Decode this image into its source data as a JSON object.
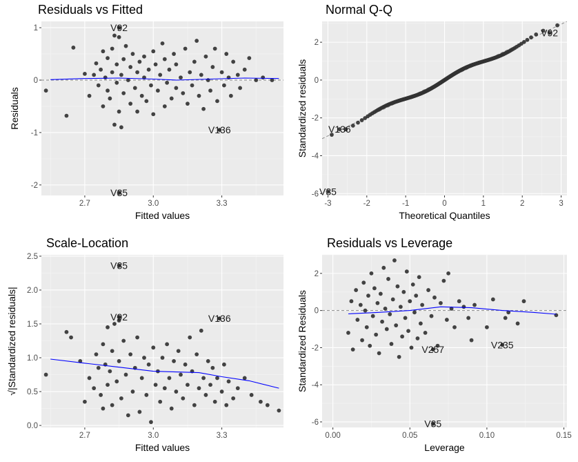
{
  "chart_data": [
    {
      "type": "scatter",
      "title": "Residuals vs Fitted",
      "xlabel": "Fitted values",
      "ylabel": "Residuals",
      "xlim": [
        2.51,
        3.57
      ],
      "ylim": [
        -2.2,
        1.12
      ],
      "xticks": [
        2.7,
        3.0,
        3.3
      ],
      "xtick_labels": [
        "2.7",
        "3.0",
        "3.3"
      ],
      "yticks": [
        -2,
        -1,
        0,
        1
      ],
      "ytick_labels": [
        "-2",
        "-1",
        "0",
        "1"
      ],
      "reference_line": {
        "y": 0,
        "style": "dashed",
        "color": "#888888"
      },
      "smooth": {
        "color": "#0000ff",
        "points": [
          [
            2.55,
            0.01
          ],
          [
            2.7,
            0.03
          ],
          [
            2.85,
            0.04
          ],
          [
            3.0,
            0.02
          ],
          [
            3.1,
            0.0
          ],
          [
            3.25,
            0.02
          ],
          [
            3.4,
            0.04
          ],
          [
            3.55,
            0.03
          ]
        ]
      },
      "points": [
        [
          2.53,
          -0.2
        ],
        [
          2.62,
          -0.68
        ],
        [
          2.65,
          0.62
        ],
        [
          2.7,
          0.12
        ],
        [
          2.72,
          -0.3
        ],
        [
          2.74,
          0.1
        ],
        [
          2.75,
          0.32
        ],
        [
          2.76,
          -0.1
        ],
        [
          2.77,
          0.2
        ],
        [
          2.78,
          0.55
        ],
        [
          2.78,
          -0.5
        ],
        [
          2.79,
          0.05
        ],
        [
          2.8,
          0.42
        ],
        [
          2.8,
          -0.2
        ],
        [
          2.81,
          -0.35
        ],
        [
          2.82,
          0.6
        ],
        [
          2.82,
          0.15
        ],
        [
          2.83,
          -0.85
        ],
        [
          2.83,
          0.85
        ],
        [
          2.84,
          -0.05
        ],
        [
          2.84,
          0.3
        ],
        [
          2.85,
          0.82
        ],
        [
          2.85,
          -0.6
        ],
        [
          2.86,
          -0.9
        ],
        [
          2.86,
          0.1
        ],
        [
          2.87,
          0.4
        ],
        [
          2.87,
          -0.25
        ],
        [
          2.88,
          0.65
        ],
        [
          2.89,
          0.0
        ],
        [
          2.9,
          -0.45
        ],
        [
          2.9,
          0.25
        ],
        [
          2.91,
          0.5
        ],
        [
          2.92,
          -0.15
        ],
        [
          2.93,
          0.15
        ],
        [
          2.93,
          -0.6
        ],
        [
          2.94,
          0.35
        ],
        [
          2.95,
          -0.3
        ],
        [
          2.96,
          0.05
        ],
        [
          2.96,
          0.45
        ],
        [
          2.97,
          -0.4
        ],
        [
          2.98,
          0.2
        ],
        [
          2.99,
          -0.1
        ],
        [
          3.0,
          0.55
        ],
        [
          3.0,
          -0.65
        ],
        [
          3.01,
          0.3
        ],
        [
          3.02,
          -0.2
        ],
        [
          3.03,
          0.1
        ],
        [
          3.04,
          0.7
        ],
        [
          3.05,
          -0.5
        ],
        [
          3.05,
          0.4
        ],
        [
          3.06,
          -0.05
        ],
        [
          3.07,
          0.2
        ],
        [
          3.08,
          -0.35
        ],
        [
          3.09,
          0.5
        ],
        [
          3.1,
          -0.15
        ],
        [
          3.1,
          0.3
        ],
        [
          3.12,
          0.05
        ],
        [
          3.13,
          -0.25
        ],
        [
          3.14,
          0.6
        ],
        [
          3.15,
          -0.45
        ],
        [
          3.16,
          0.15
        ],
        [
          3.17,
          -0.1
        ],
        [
          3.18,
          0.35
        ],
        [
          3.19,
          0.75
        ],
        [
          3.2,
          -0.3
        ],
        [
          3.21,
          0.1
        ],
        [
          3.22,
          -0.55
        ],
        [
          3.23,
          0.45
        ],
        [
          3.24,
          0.0
        ],
        [
          3.25,
          -0.2
        ],
        [
          3.26,
          0.25
        ],
        [
          3.27,
          0.6
        ],
        [
          3.28,
          -0.4
        ],
        [
          3.3,
          0.15
        ],
        [
          3.31,
          -0.1
        ],
        [
          3.32,
          0.5
        ],
        [
          3.33,
          0.05
        ],
        [
          3.34,
          -0.3
        ],
        [
          3.35,
          0.35
        ],
        [
          3.37,
          0.1
        ],
        [
          3.38,
          -0.15
        ],
        [
          3.4,
          0.2
        ],
        [
          3.42,
          0.42
        ],
        [
          3.45,
          0.0
        ],
        [
          3.48,
          0.05
        ],
        [
          3.52,
          0.0
        ]
      ],
      "labeled_points": [
        {
          "label": "V92",
          "x": 2.85,
          "y": 1.0
        },
        {
          "label": "V136",
          "x": 3.29,
          "y": -0.95
        },
        {
          "label": "V35",
          "x": 2.85,
          "y": -2.15
        }
      ]
    },
    {
      "type": "scatter",
      "title": "Normal Q-Q",
      "xlabel": "Theoretical Quantiles",
      "ylabel": "Standardized residuals",
      "xlim": [
        -3.15,
        3.15
      ],
      "ylim": [
        -6.1,
        3.1
      ],
      "xticks": [
        -3,
        -2,
        -1,
        0,
        1,
        2,
        3
      ],
      "xtick_labels": [
        "-3",
        "-2",
        "-1",
        "0",
        "1",
        "2",
        "3"
      ],
      "yticks": [
        -6,
        -4,
        -2,
        0,
        2
      ],
      "ytick_labels": [
        "-6",
        "-4",
        "-2",
        "0",
        "2"
      ],
      "reference_line": {
        "from": [
          -3.15,
          -3.1
        ],
        "to": [
          3.15,
          3.1
        ],
        "style": "dashed",
        "color": "#888888"
      },
      "points_generated": {
        "count": 270,
        "method": "normal_quantiles"
      },
      "labeled_points": [
        {
          "label": "V92",
          "x": 2.7,
          "y": 2.5
        },
        {
          "label": "V136",
          "x": -2.7,
          "y": -2.6
        },
        {
          "label": "V35",
          "x": -3.0,
          "y": -5.9
        }
      ]
    },
    {
      "type": "scatter",
      "title": "Scale-Location",
      "xlabel": "Fitted values",
      "ylabel": "√|Standardized residuals|",
      "xlim": [
        2.51,
        3.57
      ],
      "ylim": [
        -0.03,
        2.52
      ],
      "xticks": [
        2.7,
        3.0,
        3.3
      ],
      "xtick_labels": [
        "2.7",
        "3.0",
        "3.3"
      ],
      "yticks": [
        0.0,
        0.5,
        1.0,
        1.5,
        2.0,
        2.5
      ],
      "ytick_labels": [
        "0.0",
        "0.5",
        "1.0",
        "1.5",
        "2.0",
        "2.5"
      ],
      "smooth": {
        "color": "#0000ff",
        "points": [
          [
            2.55,
            0.98
          ],
          [
            2.7,
            0.92
          ],
          [
            2.85,
            0.86
          ],
          [
            3.0,
            0.8
          ],
          [
            3.1,
            0.79
          ],
          [
            3.2,
            0.78
          ],
          [
            3.3,
            0.72
          ],
          [
            3.42,
            0.66
          ],
          [
            3.55,
            0.55
          ]
        ]
      },
      "points": [
        [
          2.53,
          0.75
        ],
        [
          2.62,
          1.38
        ],
        [
          2.64,
          1.3
        ],
        [
          2.68,
          0.95
        ],
        [
          2.7,
          0.35
        ],
        [
          2.72,
          0.7
        ],
        [
          2.74,
          0.55
        ],
        [
          2.75,
          1.05
        ],
        [
          2.76,
          0.85
        ],
        [
          2.77,
          0.45
        ],
        [
          2.78,
          1.2
        ],
        [
          2.78,
          0.25
        ],
        [
          2.79,
          0.9
        ],
        [
          2.8,
          1.45
        ],
        [
          2.8,
          0.6
        ],
        [
          2.81,
          0.8
        ],
        [
          2.82,
          1.1
        ],
        [
          2.82,
          0.3
        ],
        [
          2.83,
          1.5
        ],
        [
          2.84,
          0.65
        ],
        [
          2.85,
          1.55
        ],
        [
          2.85,
          0.95
        ],
        [
          2.86,
          0.4
        ],
        [
          2.87,
          1.25
        ],
        [
          2.88,
          0.75
        ],
        [
          2.89,
          0.15
        ],
        [
          2.9,
          1.05
        ],
        [
          2.91,
          0.5
        ],
        [
          2.92,
          0.85
        ],
        [
          2.93,
          1.3
        ],
        [
          2.94,
          0.2
        ],
        [
          2.95,
          0.7
        ],
        [
          2.96,
          1.0
        ],
        [
          2.97,
          0.45
        ],
        [
          2.98,
          0.9
        ],
        [
          2.99,
          0.05
        ],
        [
          3.0,
          1.15
        ],
        [
          3.01,
          0.6
        ],
        [
          3.02,
          0.8
        ],
        [
          3.03,
          0.35
        ],
        [
          3.04,
          1.0
        ],
        [
          3.05,
          0.55
        ],
        [
          3.06,
          1.2
        ],
        [
          3.07,
          0.7
        ],
        [
          3.08,
          0.25
        ],
        [
          3.09,
          0.95
        ],
        [
          3.1,
          0.5
        ],
        [
          3.11,
          1.1
        ],
        [
          3.12,
          0.75
        ],
        [
          3.13,
          0.4
        ],
        [
          3.14,
          0.9
        ],
        [
          3.15,
          0.6
        ],
        [
          3.16,
          1.3
        ],
        [
          3.17,
          0.8
        ],
        [
          3.18,
          0.3
        ],
        [
          3.19,
          1.05
        ],
        [
          3.2,
          0.55
        ],
        [
          3.21,
          1.4
        ],
        [
          3.22,
          0.7
        ],
        [
          3.23,
          0.45
        ],
        [
          3.24,
          0.95
        ],
        [
          3.25,
          0.6
        ],
        [
          3.26,
          0.85
        ],
        [
          3.27,
          0.35
        ],
        [
          3.28,
          0.7
        ],
        [
          3.3,
          0.5
        ],
        [
          3.31,
          0.9
        ],
        [
          3.32,
          0.3
        ],
        [
          3.33,
          0.65
        ],
        [
          3.35,
          0.4
        ],
        [
          3.37,
          0.55
        ],
        [
          3.4,
          0.7
        ],
        [
          3.43,
          0.45
        ],
        [
          3.47,
          0.35
        ],
        [
          3.5,
          0.3
        ],
        [
          3.55,
          0.22
        ]
      ],
      "labeled_points": [
        {
          "label": "V35",
          "x": 2.85,
          "y": 2.36
        },
        {
          "label": "V92",
          "x": 2.85,
          "y": 1.6
        },
        {
          "label": "V136",
          "x": 3.29,
          "y": 1.58
        }
      ]
    },
    {
      "type": "scatter",
      "title": "Residuals vs Leverage",
      "xlabel": "Leverage",
      "ylabel": "Standardized Residuals",
      "xlim": [
        -0.007,
        0.152
      ],
      "ylim": [
        -6.3,
        3.0
      ],
      "xticks": [
        0.0,
        0.05,
        0.1,
        0.15
      ],
      "xtick_labels": [
        "0.00",
        "0.05",
        "0.10",
        "0.15"
      ],
      "yticks": [
        -6,
        -4,
        -2,
        0,
        2
      ],
      "ytick_labels": [
        "-6",
        "-4",
        "-2",
        "0",
        "2"
      ],
      "reference_line": {
        "y": 0,
        "style": "dashed",
        "color": "#888888"
      },
      "smooth": {
        "color": "#0000ff",
        "points": [
          [
            0.01,
            -0.18
          ],
          [
            0.03,
            -0.1
          ],
          [
            0.05,
            0.0
          ],
          [
            0.07,
            0.2
          ],
          [
            0.09,
            0.15
          ],
          [
            0.11,
            0.0
          ],
          [
            0.13,
            -0.1
          ],
          [
            0.145,
            -0.2
          ]
        ]
      },
      "points": [
        [
          0.01,
          -1.2
        ],
        [
          0.012,
          0.5
        ],
        [
          0.013,
          -2.1
        ],
        [
          0.015,
          1.1
        ],
        [
          0.016,
          -0.5
        ],
        [
          0.018,
          0.3
        ],
        [
          0.019,
          -1.6
        ],
        [
          0.02,
          1.5
        ],
        [
          0.021,
          0.0
        ],
        [
          0.022,
          -0.9
        ],
        [
          0.023,
          0.8
        ],
        [
          0.024,
          -1.9
        ],
        [
          0.025,
          2.0
        ],
        [
          0.026,
          -0.3
        ],
        [
          0.027,
          1.2
        ],
        [
          0.028,
          -1.3
        ],
        [
          0.029,
          0.4
        ],
        [
          0.03,
          -2.3
        ],
        [
          0.031,
          0.9
        ],
        [
          0.032,
          -0.6
        ],
        [
          0.033,
          2.3
        ],
        [
          0.034,
          0.1
        ],
        [
          0.035,
          -1.0
        ],
        [
          0.036,
          1.7
        ],
        [
          0.037,
          -0.2
        ],
        [
          0.038,
          -1.8
        ],
        [
          0.039,
          0.6
        ],
        [
          0.04,
          2.7
        ],
        [
          0.041,
          -0.8
        ],
        [
          0.042,
          1.3
        ],
        [
          0.043,
          -2.5
        ],
        [
          0.044,
          0.2
        ],
        [
          0.045,
          -1.4
        ],
        [
          0.046,
          1.0
        ],
        [
          0.047,
          -0.4
        ],
        [
          0.048,
          2.1
        ],
        [
          0.049,
          -1.1
        ],
        [
          0.05,
          0.5
        ],
        [
          0.051,
          -2.0
        ],
        [
          0.052,
          1.4
        ],
        [
          0.053,
          -0.1
        ],
        [
          0.054,
          0.8
        ],
        [
          0.055,
          -1.5
        ],
        [
          0.056,
          1.8
        ],
        [
          0.057,
          -0.7
        ],
        [
          0.058,
          0.3
        ],
        [
          0.06,
          -1.2
        ],
        [
          0.062,
          1.1
        ],
        [
          0.064,
          -0.3
        ],
        [
          0.066,
          0.7
        ],
        [
          0.068,
          -1.9
        ],
        [
          0.07,
          0.4
        ],
        [
          0.072,
          1.6
        ],
        [
          0.074,
          -0.5
        ],
        [
          0.075,
          2.0
        ],
        [
          0.077,
          0.1
        ],
        [
          0.079,
          -0.9
        ],
        [
          0.082,
          0.5
        ],
        [
          0.085,
          0.2
        ],
        [
          0.088,
          -0.4
        ],
        [
          0.09,
          -1.6
        ],
        [
          0.092,
          0.3
        ],
        [
          0.1,
          -0.9
        ],
        [
          0.104,
          0.6
        ],
        [
          0.112,
          -0.4
        ],
        [
          0.114,
          -0.1
        ],
        [
          0.12,
          -0.7
        ],
        [
          0.124,
          0.5
        ],
        [
          0.145,
          -0.25
        ]
      ],
      "labeled_points": [
        {
          "label": "V257",
          "x": 0.065,
          "y": -2.1
        },
        {
          "label": "V235",
          "x": 0.11,
          "y": -1.85
        },
        {
          "label": "V35",
          "x": 0.065,
          "y": -6.1
        }
      ]
    }
  ]
}
